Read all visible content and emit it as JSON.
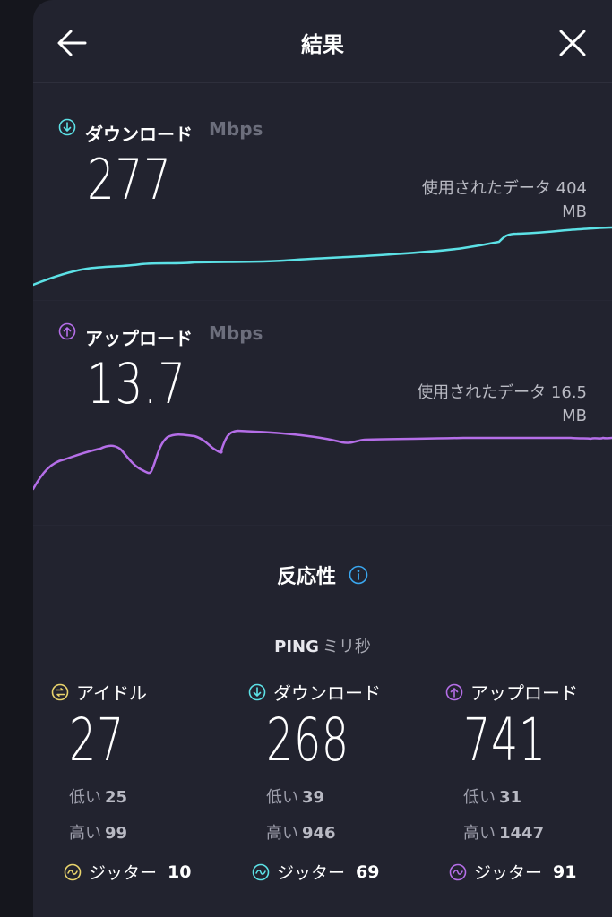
{
  "header": {
    "title": "結果"
  },
  "download": {
    "label": "ダウンロード",
    "unit": "Mbps",
    "value": "277",
    "data_used_label": "使用されたデータ 404",
    "data_used_unit": "MB",
    "color": "#5ce1e6"
  },
  "upload": {
    "label": "アップロード",
    "unit": "Mbps",
    "value": "13.7",
    "data_used_label": "使用されたデータ 16.5",
    "data_used_unit": "MB",
    "color": "#b56ee8"
  },
  "responsiveness": {
    "title": "反応性"
  },
  "ping": {
    "label": "PING",
    "unit": "ミリ秒"
  },
  "ping_columns": [
    {
      "label": "アイドル",
      "value": "27",
      "low_label": "低い",
      "low": "25",
      "high_label": "高い",
      "high": "99",
      "jitter_label": "ジッター",
      "jitter": "10",
      "color": "#e8d36c"
    },
    {
      "label": "ダウンロード",
      "value": "268",
      "low_label": "低い",
      "low": "39",
      "high_label": "高い",
      "high": "946",
      "jitter_label": "ジッター",
      "jitter": "69",
      "color": "#5ce1e6"
    },
    {
      "label": "アップロード",
      "value": "741",
      "low_label": "低い",
      "low": "31",
      "high_label": "高い",
      "high": "1447",
      "jitter_label": "ジッター",
      "jitter": "91",
      "color": "#b56ee8"
    }
  ]
}
